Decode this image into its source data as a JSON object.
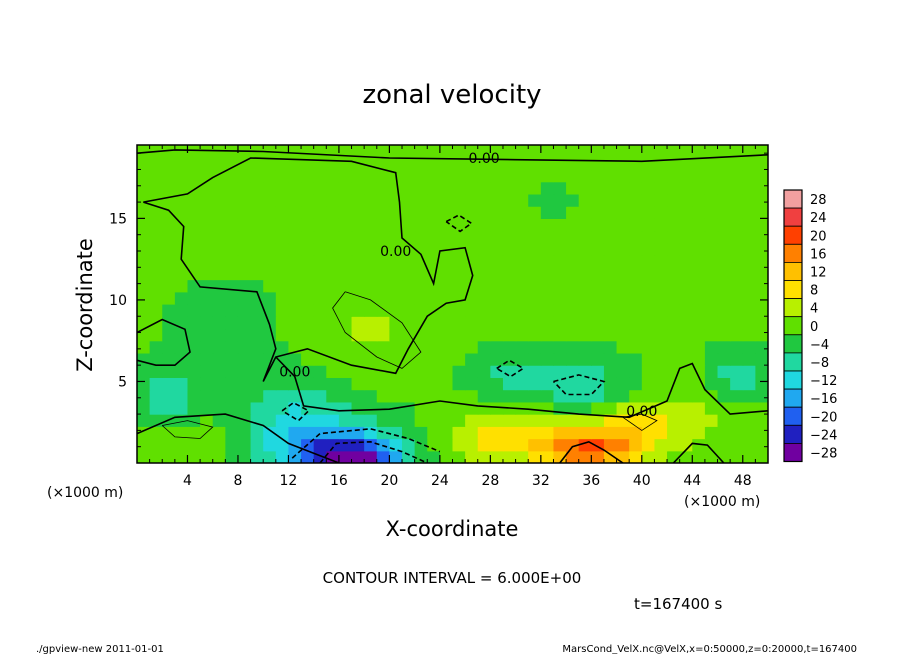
{
  "chart_data": {
    "type": "heatmap",
    "title": "zonal velocity",
    "xlabel": "X-coordinate",
    "ylabel": "Z-coordinate",
    "x_unit": "(×1000 m)",
    "y_unit": "(×1000 m)",
    "xlim": [
      0,
      50
    ],
    "ylim": [
      0,
      19.5
    ],
    "x_ticks": [
      4,
      8,
      12,
      16,
      20,
      24,
      28,
      32,
      36,
      40,
      44,
      48
    ],
    "y_ticks": [
      5,
      10,
      15
    ],
    "colorbar": {
      "levels": [
        28,
        24,
        20,
        16,
        12,
        8,
        4,
        0,
        -4,
        -8,
        -12,
        -16,
        -20,
        -24,
        -28
      ],
      "labels": [
        "28",
        "24",
        "20",
        "16",
        "12",
        "8",
        "4",
        "0",
        "−4",
        "−8",
        "−12",
        "−16",
        "−20",
        "−24",
        "−28"
      ],
      "colors": [
        "#f2a0a0",
        "#f04040",
        "#ff4000",
        "#ff8000",
        "#ffc000",
        "#ffe000",
        "#b8f000",
        "#60e000",
        "#20c840",
        "#20d8a0",
        "#20d8e0",
        "#20a8f0",
        "#2060f0",
        "#2020c0",
        "#7000a0"
      ]
    },
    "contour_labels": [
      "0.00",
      "0.00",
      "0.00",
      "0.00"
    ],
    "contour_interval": "CONTOUR INTERVAL = 6.000E+00",
    "time": "t=167400 s",
    "footer_left": "./gpview-new  2011-01-01",
    "footer_right": "MarsCond_VelX.nc@VelX,x=0:50000,z=0:20000,t=167400",
    "features": [
      {
        "x": 36,
        "z": 0.8,
        "value": 14,
        "rx": 3.5,
        "rz": 1.2
      },
      {
        "x": 36,
        "z": 1.8,
        "value": 8,
        "rx": 8,
        "rz": 1.8
      },
      {
        "x": 28,
        "z": 1.3,
        "value": 6,
        "rx": 6,
        "rz": 1.5
      },
      {
        "x": 17,
        "z": 0.3,
        "value": -20,
        "rx": 4,
        "rz": 1.3
      },
      {
        "x": 15,
        "z": 1.0,
        "value": -11,
        "rx": 7,
        "rz": 2.2
      },
      {
        "x": 5,
        "z": 1.2,
        "value": 4,
        "rx": 4,
        "rz": 1.5
      },
      {
        "x": 2.5,
        "z": 4.2,
        "value": -8,
        "rx": 2.5,
        "rz": 1.8
      },
      {
        "x": 12,
        "z": 3.5,
        "value": -6,
        "rx": 4,
        "rz": 2.5
      },
      {
        "x": 7,
        "z": 8.5,
        "value": -4,
        "rx": 4,
        "rz": 2.5
      },
      {
        "x": 18.5,
        "z": 7.8,
        "value": 3,
        "rx": 5,
        "rz": 2.5
      },
      {
        "x": 35,
        "z": 4.5,
        "value": -8,
        "rx": 4,
        "rz": 2
      },
      {
        "x": 29,
        "z": 5.5,
        "value": -5,
        "rx": 3,
        "rz": 1.5
      },
      {
        "x": 47.5,
        "z": 5.2,
        "value": -7,
        "rx": 2.2,
        "rz": 1.8
      },
      {
        "x": 40,
        "z": 2.5,
        "value": 4,
        "rx": 3,
        "rz": 1.5
      },
      {
        "x": 45,
        "z": 3.5,
        "value": 3,
        "rx": 4,
        "rz": 1.5
      },
      {
        "x": 20,
        "z": 13.5,
        "value": 2,
        "rx": 8,
        "rz": 5
      },
      {
        "x": 31,
        "z": 16,
        "value": -1,
        "rx": 10,
        "rz": 4
      }
    ]
  }
}
